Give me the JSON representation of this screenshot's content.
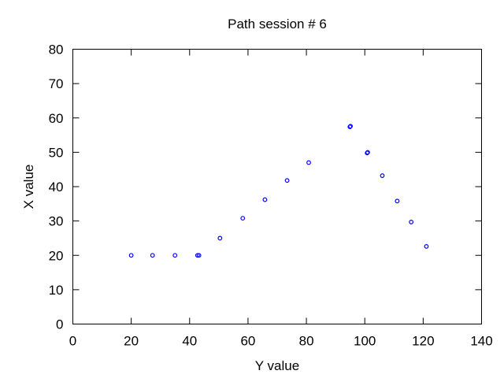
{
  "chart_data": {
    "type": "scatter",
    "title": "Path session # 6",
    "xlabel": "Y value",
    "ylabel": "X value",
    "xlim": [
      0,
      140
    ],
    "ylim": [
      0,
      80
    ],
    "xticks": [
      "0",
      "20",
      "40",
      "60",
      "80",
      "100",
      "120",
      "140"
    ],
    "yticks": [
      "0",
      "10",
      "20",
      "30",
      "40",
      "50",
      "60",
      "70",
      "80"
    ],
    "grid": false,
    "marker_color": "#0000ff",
    "points": [
      {
        "x": 20,
        "y": 20
      },
      {
        "x": 27.3,
        "y": 20
      },
      {
        "x": 35,
        "y": 20
      },
      {
        "x": 42.7,
        "y": 20
      },
      {
        "x": 43.2,
        "y": 20
      },
      {
        "x": 50.4,
        "y": 25
      },
      {
        "x": 58.2,
        "y": 30.8
      },
      {
        "x": 65.8,
        "y": 36.2
      },
      {
        "x": 73.4,
        "y": 41.8
      },
      {
        "x": 80.8,
        "y": 47
      },
      {
        "x": 94.9,
        "y": 57.4
      },
      {
        "x": 95.1,
        "y": 57.6
      },
      {
        "x": 100.8,
        "y": 49.8
      },
      {
        "x": 101,
        "y": 50
      },
      {
        "x": 106,
        "y": 43.2
      },
      {
        "x": 111.1,
        "y": 35.8
      },
      {
        "x": 115.9,
        "y": 29.7
      },
      {
        "x": 121.1,
        "y": 22.6
      }
    ]
  }
}
